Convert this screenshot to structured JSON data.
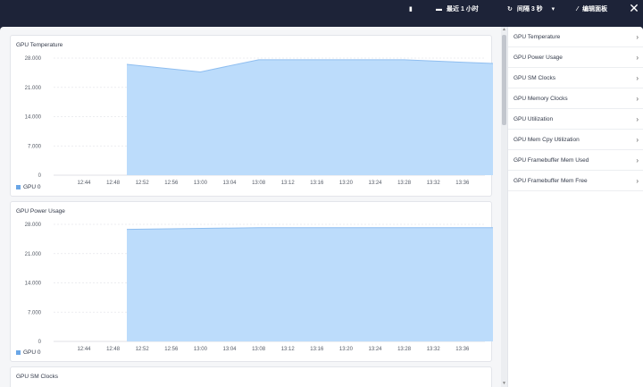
{
  "topbar": {
    "item1_label": "",
    "time_range": "最近 1 小时",
    "refresh": "间隔 3 秒",
    "edit": "编辑面板"
  },
  "panels": [
    {
      "title": "GPU Temperature",
      "legend": "GPU 0",
      "chart_data": {
        "type": "area",
        "x": [
          "12:52",
          "13:00",
          "13:08",
          "13:28",
          "13:38"
        ],
        "series": [
          {
            "name": "GPU 0",
            "values": [
              26500,
              24700,
              27600,
              27600,
              26700
            ]
          }
        ],
        "y_ticks": [
          "28.000",
          "21.000",
          "14.000",
          "7.000",
          "0"
        ],
        "x_ticks": [
          "12:44",
          "12:48",
          "12:52",
          "12:56",
          "13:00",
          "13:04",
          "13:08",
          "13:12",
          "13:16",
          "13:20",
          "13:24",
          "13:28",
          "13:32",
          "13:36"
        ],
        "ylim": [
          0,
          28000
        ],
        "grid": true,
        "color": "#bcdcfb"
      }
    },
    {
      "title": "GPU Power Usage",
      "legend": "GPU 0",
      "chart_data": {
        "type": "area",
        "x": [
          "12:52",
          "13:08",
          "13:38"
        ],
        "series": [
          {
            "name": "GPU 0",
            "values": [
              26800,
              27200,
              27200
            ]
          }
        ],
        "y_ticks": [
          "28.000",
          "21.000",
          "14.000",
          "7.000",
          "0"
        ],
        "x_ticks": [
          "12:44",
          "12:48",
          "12:52",
          "12:56",
          "13:00",
          "13:04",
          "13:08",
          "13:12",
          "13:16",
          "13:20",
          "13:24",
          "13:28",
          "13:32",
          "13:36"
        ],
        "ylim": [
          0,
          28000
        ],
        "grid": true,
        "color": "#bcdcfb"
      }
    },
    {
      "title": "GPU SM Clocks"
    }
  ],
  "sidebar": {
    "items": [
      {
        "label": "GPU Temperature"
      },
      {
        "label": "GPU Power Usage"
      },
      {
        "label": "GPU SM Clocks"
      },
      {
        "label": "GPU Memory Clocks"
      },
      {
        "label": "GPU Utilization"
      },
      {
        "label": "GPU Mem Cpy Utilization"
      },
      {
        "label": "GPU Framebuffer Mem Used"
      },
      {
        "label": "GPU Framebuffer Mem Free"
      }
    ]
  },
  "colors": {
    "header_bg": "#1d2338",
    "area_fill": "#bcdcfb",
    "area_line": "#8fbef0",
    "legend": "#6aa6e6"
  }
}
